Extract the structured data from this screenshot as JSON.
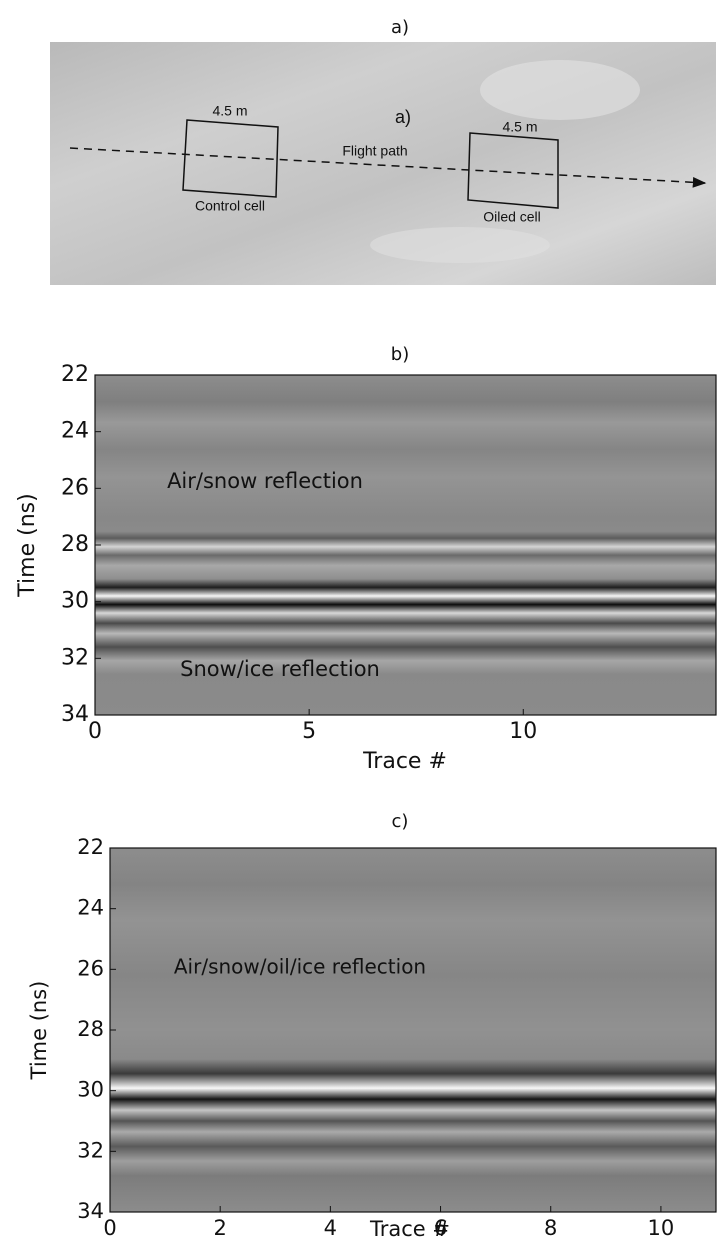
{
  "chart_data": [
    {
      "type": "photo",
      "title": "a)",
      "annotations": [
        "a)",
        "4.5 m",
        "Control cell",
        "Flight path",
        "4.5 m",
        "Oiled cell"
      ]
    },
    {
      "type": "radargram",
      "title": "b)",
      "xlabel": "Trace #",
      "ylabel": "Time (ns)",
      "xlim": [
        0,
        14.5
      ],
      "xticks": [
        0,
        5,
        10
      ],
      "ylim": [
        22,
        34
      ],
      "yticks": [
        22,
        24,
        26,
        28,
        30,
        32,
        34
      ],
      "y_inverted": true,
      "annotations": [
        "Air/snow reflection",
        "Snow/ice reflection"
      ]
    },
    {
      "type": "radargram",
      "title": "c)",
      "xlabel": "Trace #",
      "ylabel": "Time (ns)",
      "xlim": [
        0,
        11
      ],
      "xticks": [
        0,
        2,
        4,
        6,
        8,
        10
      ],
      "ylim": [
        22,
        34
      ],
      "yticks": [
        22,
        24,
        26,
        28,
        30,
        32,
        34
      ],
      "y_inverted": true,
      "annotations": [
        "Air/snow/oil/ice reflection"
      ]
    }
  ]
}
